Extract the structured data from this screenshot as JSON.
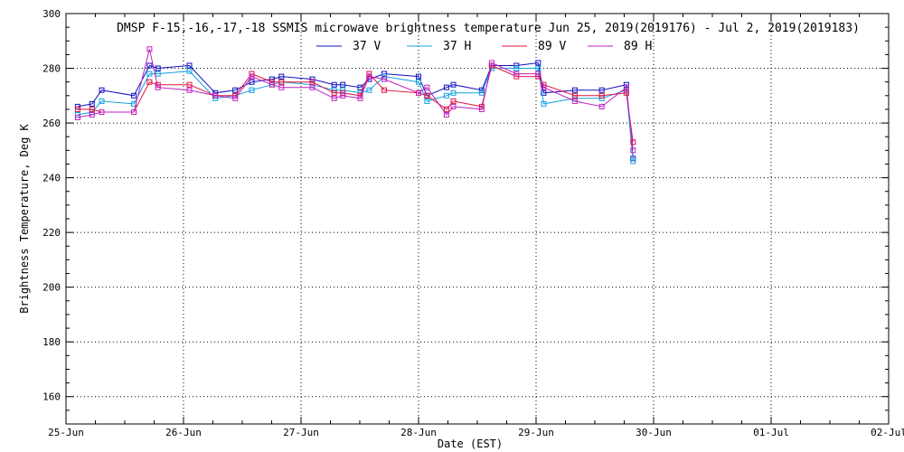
{
  "chart_data": {
    "type": "line",
    "title": "DMSP F-15,-16,-17,-18 SSMIS microwave brightness temperature Jun 25, 2019(2019176) - Jul  2, 2019(2019183)",
    "xlabel": "Date (EST)",
    "ylabel": "Brightness Temperature, Deg K",
    "xlim": [
      "2019-06-25T00:00",
      "2019-07-02T00:00"
    ],
    "ylim": [
      150,
      300
    ],
    "x_tick_labels": [
      "25-Jun",
      "26-Jun",
      "27-Jun",
      "28-Jun",
      "29-Jun",
      "30-Jun",
      "01-Jul",
      "02-Jul"
    ],
    "y_ticks": [
      160,
      180,
      200,
      220,
      240,
      260,
      280,
      300
    ],
    "grid": true,
    "legend_position": "top-center",
    "series": [
      {
        "name": "37 V",
        "color": "#1010c0",
        "x": [
          "2019-06-25T02:23",
          "2019-06-25T05:19",
          "2019-06-25T07:17",
          "2019-06-25T13:52",
          "2019-06-25T17:04",
          "2019-06-25T18:47",
          "2019-06-26T01:12",
          "2019-06-26T06:30",
          "2019-06-26T10:34",
          "2019-06-26T13:56",
          "2019-06-26T18:04",
          "2019-06-26T20:00",
          "2019-06-27T02:18",
          "2019-06-27T06:46",
          "2019-06-27T08:32",
          "2019-06-27T12:06",
          "2019-06-27T13:55",
          "2019-06-27T17:00",
          "2019-06-28T00:00",
          "2019-06-28T01:44",
          "2019-06-28T05:42",
          "2019-06-28T07:06",
          "2019-06-28T12:54",
          "2019-06-28T14:56",
          "2019-06-28T20:00",
          "2019-06-29T00:26",
          "2019-06-29T01:33",
          "2019-06-29T07:55",
          "2019-06-29T13:25",
          "2019-06-29T18:27",
          "2019-06-29T19:48"
        ],
        "values": [
          266,
          267,
          272,
          270,
          281,
          280,
          281,
          271,
          272,
          275,
          276,
          277,
          276,
          274,
          274,
          273,
          276,
          278,
          277,
          270,
          273,
          274,
          272,
          281,
          281,
          282,
          271,
          272,
          272,
          274,
          247
        ]
      },
      {
        "name": "37 H",
        "color": "#10a0e0",
        "x": [
          "2019-06-25T02:23",
          "2019-06-25T05:19",
          "2019-06-25T07:17",
          "2019-06-25T13:52",
          "2019-06-25T17:04",
          "2019-06-25T18:47",
          "2019-06-26T01:12",
          "2019-06-26T06:30",
          "2019-06-26T10:34",
          "2019-06-26T13:56",
          "2019-06-26T18:04",
          "2019-06-26T20:00",
          "2019-06-27T02:18",
          "2019-06-27T06:46",
          "2019-06-27T08:32",
          "2019-06-27T12:06",
          "2019-06-27T13:55",
          "2019-06-27T17:00",
          "2019-06-28T00:00",
          "2019-06-28T01:44",
          "2019-06-28T05:42",
          "2019-06-28T07:06",
          "2019-06-28T12:54",
          "2019-06-28T14:56",
          "2019-06-28T20:00",
          "2019-06-29T00:26",
          "2019-06-29T01:33",
          "2019-06-29T07:55",
          "2019-06-29T13:25",
          "2019-06-29T18:27",
          "2019-06-29T19:48"
        ],
        "values": [
          263,
          264,
          268,
          267,
          278,
          278,
          279,
          269,
          270,
          272,
          274,
          275,
          274,
          272,
          272,
          271,
          272,
          277,
          275,
          268,
          270,
          271,
          271,
          280,
          280,
          280,
          267,
          269,
          269,
          272,
          246
        ]
      },
      {
        "name": "89 V",
        "color": "#e01040",
        "x": [
          "2019-06-25T02:23",
          "2019-06-25T05:19",
          "2019-06-25T07:17",
          "2019-06-25T13:52",
          "2019-06-25T17:04",
          "2019-06-25T18:47",
          "2019-06-26T01:12",
          "2019-06-26T06:30",
          "2019-06-26T10:34",
          "2019-06-26T13:56",
          "2019-06-26T18:04",
          "2019-06-26T20:00",
          "2019-06-27T02:18",
          "2019-06-27T06:46",
          "2019-06-27T08:32",
          "2019-06-27T12:06",
          "2019-06-27T13:55",
          "2019-06-27T17:00",
          "2019-06-28T00:00",
          "2019-06-28T01:44",
          "2019-06-28T05:42",
          "2019-06-28T07:06",
          "2019-06-28T12:54",
          "2019-06-28T14:56",
          "2019-06-28T20:00",
          "2019-06-29T00:26",
          "2019-06-29T01:33",
          "2019-06-29T07:55",
          "2019-06-29T13:25",
          "2019-06-29T18:27",
          "2019-06-29T19:48"
        ],
        "values": [
          265,
          265,
          264,
          264,
          275,
          274,
          274,
          270,
          270,
          278,
          275,
          275,
          275,
          271,
          271,
          270,
          278,
          272,
          271,
          270,
          265,
          268,
          266,
          281,
          277,
          277,
          274,
          270,
          270,
          271,
          253
        ]
      },
      {
        "name": "89 H",
        "color": "#c020c0",
        "x": [
          "2019-06-25T02:23",
          "2019-06-25T05:19",
          "2019-06-25T07:17",
          "2019-06-25T13:52",
          "2019-06-25T17:04",
          "2019-06-25T18:47",
          "2019-06-26T01:12",
          "2019-06-26T06:30",
          "2019-06-26T10:34",
          "2019-06-26T13:56",
          "2019-06-26T18:04",
          "2019-06-26T20:00",
          "2019-06-27T02:18",
          "2019-06-27T06:46",
          "2019-06-27T08:32",
          "2019-06-27T12:06",
          "2019-06-27T13:55",
          "2019-06-27T17:00",
          "2019-06-28T00:00",
          "2019-06-28T01:44",
          "2019-06-28T05:42",
          "2019-06-28T07:06",
          "2019-06-28T12:54",
          "2019-06-28T14:56",
          "2019-06-28T20:00",
          "2019-06-29T00:26",
          "2019-06-29T01:33",
          "2019-06-29T07:55",
          "2019-06-29T13:25",
          "2019-06-29T18:27",
          "2019-06-29T19:48"
        ],
        "values": [
          262,
          263,
          264,
          264,
          287,
          273,
          272,
          270,
          269,
          277,
          274,
          273,
          273,
          269,
          270,
          269,
          277,
          276,
          271,
          273,
          263,
          266,
          265,
          282,
          278,
          278,
          273,
          268,
          266,
          273,
          250
        ]
      }
    ]
  }
}
